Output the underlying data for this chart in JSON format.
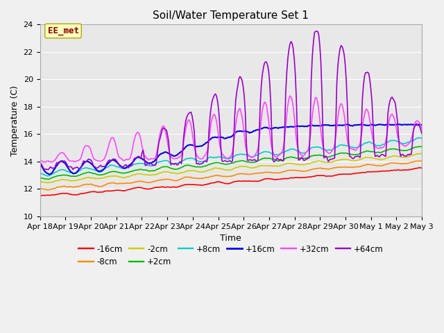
{
  "title": "Soil/Water Temperature Set 1",
  "xlabel": "Time",
  "ylabel": "Temperature (C)",
  "ylim": [
    10,
    24
  ],
  "annotation": "EE_met",
  "annotation_color": "#8B0000",
  "annotation_bg": "#FFFFC0",
  "fig_bg": "#F0F0F0",
  "plot_bg": "#E8E8E8",
  "xtick_labels": [
    "Apr 18",
    "Apr 19",
    "Apr 20",
    "Apr 21",
    "Apr 22",
    "Apr 23",
    "Apr 24",
    "Apr 25",
    "Apr 26",
    "Apr 27",
    "Apr 28",
    "Apr 29",
    "Apr 30",
    "May 1",
    "May 2",
    "May 3"
  ],
  "series_labels": [
    "-16cm",
    "-8cm",
    "-2cm",
    "+2cm",
    "+8cm",
    "+16cm",
    "+32cm",
    "+64cm"
  ],
  "series_colors": [
    "#FF0000",
    "#FF8800",
    "#CCCC00",
    "#00BB00",
    "#00CCCC",
    "#0000EE",
    "#FF44FF",
    "#9900CC"
  ],
  "series_linewidths": [
    1.2,
    1.2,
    1.2,
    1.2,
    1.2,
    1.5,
    1.2,
    1.2
  ],
  "legend_ncol_row1": 6,
  "legend_ncol_row2": 2
}
